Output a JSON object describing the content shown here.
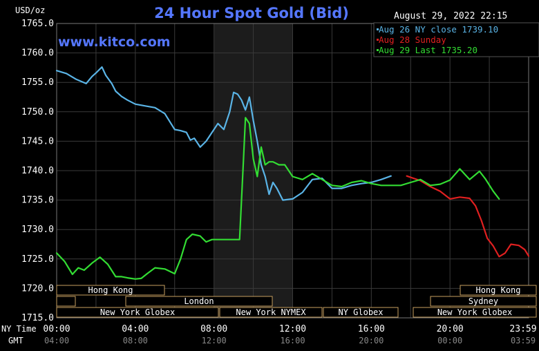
{
  "header": {
    "unit_label": "USD/oz",
    "title": "24 Hour Spot Gold (Bid)",
    "timestamp": "August 29, 2022 22:15",
    "watermark": "www.kitco.com"
  },
  "legend": [
    {
      "text": "Aug 26 NY close 1739.10",
      "color": "#5ab4e6"
    },
    {
      "text": "Aug 28 Sunday",
      "color": "#e02020"
    },
    {
      "text": "Aug 29 Last 1735.20",
      "color": "#33dd33"
    }
  ],
  "row_labels": {
    "ny": "NY Time",
    "gmt": "GMT"
  },
  "sessions": {
    "top": [
      "Hong Kong",
      "Hong Kong"
    ],
    "middle": [
      "London",
      "Sydney"
    ],
    "bottom": [
      "New York Globex",
      "New York NYMEX",
      "NY Globex",
      "New York Globex"
    ]
  },
  "colors": {
    "background": "#000000",
    "grid": "#3a3a3a",
    "axis_text": "#ffffff",
    "title": "#5577ff",
    "watermark": "#5577ff",
    "shade": "#1c1c1c",
    "session_box": "#c8a060",
    "series_blue": "#5ab4e6",
    "series_red": "#e02020",
    "series_green": "#33dd33"
  },
  "chart_data": {
    "type": "line",
    "ylabel": "USD/oz",
    "ylim": [
      1715,
      1765
    ],
    "xlim": [
      0,
      24
    ],
    "shaded_range": [
      8,
      12
    ],
    "y_ticks": [
      "1765.0",
      "1760.0",
      "1755.0",
      "1750.0",
      "1745.0",
      "1740.0",
      "1735.0",
      "1730.0",
      "1725.0",
      "1720.0",
      "1715.0"
    ],
    "x_ticks_ny": [
      "00:00",
      "04:00",
      "08:00",
      "12:00",
      "16:00",
      "20:00",
      "23:59"
    ],
    "x_ticks_gmt": [
      "04:00",
      "08:00",
      "12:00",
      "16:00",
      "20:00",
      "00:00",
      "03:59"
    ],
    "series": [
      {
        "name": "Aug 26 NY close 1739.10",
        "color": "#5ab4e6",
        "x": [
          0,
          0.5,
          1,
          1.5,
          1.8,
          2,
          2.3,
          2.5,
          2.8,
          3,
          3.3,
          3.6,
          4,
          4.5,
          5,
          5.5,
          6,
          6.3,
          6.6,
          6.8,
          7,
          7.3,
          7.6,
          7.9,
          8.2,
          8.5,
          8.8,
          9,
          9.2,
          9.4,
          9.6,
          9.8,
          10,
          10.2,
          10.4,
          10.6,
          10.8,
          11,
          11.2,
          11.5,
          12,
          12.5,
          13,
          13.5,
          14,
          14.5,
          15,
          15.5,
          16,
          16.5,
          17
        ],
        "y": [
          1757,
          1756.5,
          1755.5,
          1754.8,
          1756,
          1756.6,
          1757.6,
          1756.2,
          1754.8,
          1753.5,
          1752.6,
          1752,
          1751.3,
          1751,
          1750.7,
          1749.7,
          1747,
          1746.8,
          1746.5,
          1745.2,
          1745.5,
          1744,
          1745,
          1746.5,
          1748,
          1747,
          1750,
          1753.3,
          1753,
          1752,
          1750.3,
          1752.5,
          1748.5,
          1745,
          1741,
          1739,
          1736,
          1738,
          1737,
          1735,
          1735.2,
          1736.3,
          1738.5,
          1738.7,
          1737,
          1737,
          1737.5,
          1737.8,
          1738,
          1738.5,
          1739.1
        ]
      },
      {
        "name": "Aug 28 Sunday",
        "color": "#e02020",
        "x": [
          17.8,
          18.5,
          19,
          19.5,
          20,
          20.5,
          21,
          21.3,
          21.6,
          21.9,
          22.2,
          22.5,
          22.8,
          23.1,
          23.5,
          23.8,
          24
        ],
        "y": [
          1739.1,
          1738.3,
          1737.3,
          1736.5,
          1735.2,
          1735.5,
          1735.3,
          1734,
          1731.5,
          1728.5,
          1727.2,
          1725.4,
          1726,
          1727.5,
          1727.3,
          1726.6,
          1725.5
        ]
      },
      {
        "name": "Aug 29 Last 1735.20",
        "color": "#33dd33",
        "x": [
          0,
          0.4,
          0.8,
          1.1,
          1.4,
          1.8,
          2.2,
          2.6,
          3,
          3.3,
          3.6,
          4,
          4.3,
          4.6,
          5,
          5.5,
          6,
          6.3,
          6.6,
          6.9,
          7.3,
          7.6,
          7.9,
          8,
          8.4,
          8.8,
          9,
          9.3,
          9.5,
          9.6,
          9.8,
          10,
          10.2,
          10.4,
          10.6,
          10.8,
          11,
          11.3,
          11.6,
          12,
          12.5,
          13,
          13.5,
          14,
          14.5,
          15,
          15.5,
          16,
          16.5,
          17,
          17.5,
          18,
          18.5,
          19,
          19.5,
          20,
          20.5,
          21,
          21.5,
          21.8,
          22.2,
          22.5
        ],
        "y": [
          1726,
          1724.6,
          1722.4,
          1723.5,
          1723.1,
          1724.3,
          1725.3,
          1724.1,
          1722,
          1722,
          1721.8,
          1721.6,
          1721.7,
          1722.5,
          1723.5,
          1723.3,
          1722.5,
          1725,
          1728.3,
          1729.2,
          1728.9,
          1727.9,
          1728.3,
          1728.3,
          1728.3,
          1728.3,
          1728.3,
          1728.3,
          1742,
          1749,
          1748,
          1742,
          1739,
          1744,
          1741,
          1741.5,
          1741.5,
          1741,
          1741,
          1739,
          1738.5,
          1739.5,
          1738.5,
          1737.5,
          1737.3,
          1738,
          1738.3,
          1737.8,
          1737.5,
          1737.5,
          1737.5,
          1738,
          1738.5,
          1737.5,
          1737.7,
          1738.4,
          1740.3,
          1738.5,
          1739.9,
          1738.6,
          1736.5,
          1735.2
        ]
      }
    ]
  }
}
